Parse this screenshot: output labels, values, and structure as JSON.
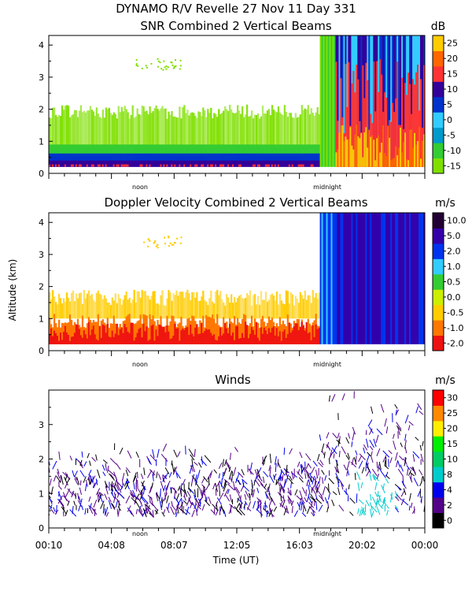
{
  "header": {
    "title": "DYNAMO R/V Revelle  27 Nov 11 Day 331"
  },
  "y_axis_label": "Altitude (km)",
  "x_axis_label": "Time (UT)",
  "noon_label": "noon",
  "midnight_label": "midnight",
  "chart_data": [
    {
      "type": "heatmap",
      "title": "SNR Combined 2 Vertical Beams",
      "unit": "dB",
      "ylim": [
        0,
        4.3
      ],
      "yticks": [
        "0",
        "1",
        "2",
        "3",
        "4"
      ],
      "colorbar": {
        "colors": [
          "#7fe000",
          "#33cc33",
          "#0099cc",
          "#33ccff",
          "#0033cc",
          "#330099",
          "#ff3333",
          "#ff6600",
          "#ffcc00"
        ],
        "labels": [
          "-15",
          "-10",
          "-5",
          "0",
          "5",
          "10",
          "15",
          "20",
          "25"
        ]
      }
    },
    {
      "type": "heatmap",
      "title": "Doppler Velocity Combined 2 Vertical Beams",
      "unit": "m/s",
      "ylim": [
        0,
        4.3
      ],
      "yticks": [
        "0",
        "1",
        "2",
        "3",
        "4"
      ],
      "colorbar": {
        "colors": [
          "#ee1111",
          "#ff7700",
          "#ffcc00",
          "#ccee00",
          "#33cc33",
          "#33ccff",
          "#0033ee",
          "#3300aa",
          "#220033"
        ],
        "labels": [
          "-2.0",
          "-1.0",
          "-0.5",
          "0.0",
          "0.5",
          "1.0",
          "2.0",
          "5.0",
          "10.0"
        ]
      }
    },
    {
      "type": "scatter",
      "title": "Winds",
      "unit": "m/s",
      "ylim": [
        0,
        4
      ],
      "yticks": [
        "0",
        "1",
        "2",
        "3"
      ],
      "xticks": [
        "00:10",
        "04:08",
        "08:07",
        "12:05",
        "16:03",
        "20:02",
        "00:00"
      ],
      "colorbar": {
        "colors": [
          "#000000",
          "#550088",
          "#0000ee",
          "#00cccc",
          "#00cc66",
          "#00ee00",
          "#ffee00",
          "#ff8800",
          "#ff0000"
        ],
        "labels": [
          "0",
          "2",
          "4",
          "8",
          "10",
          "15",
          "20",
          "25",
          "30"
        ]
      }
    }
  ]
}
